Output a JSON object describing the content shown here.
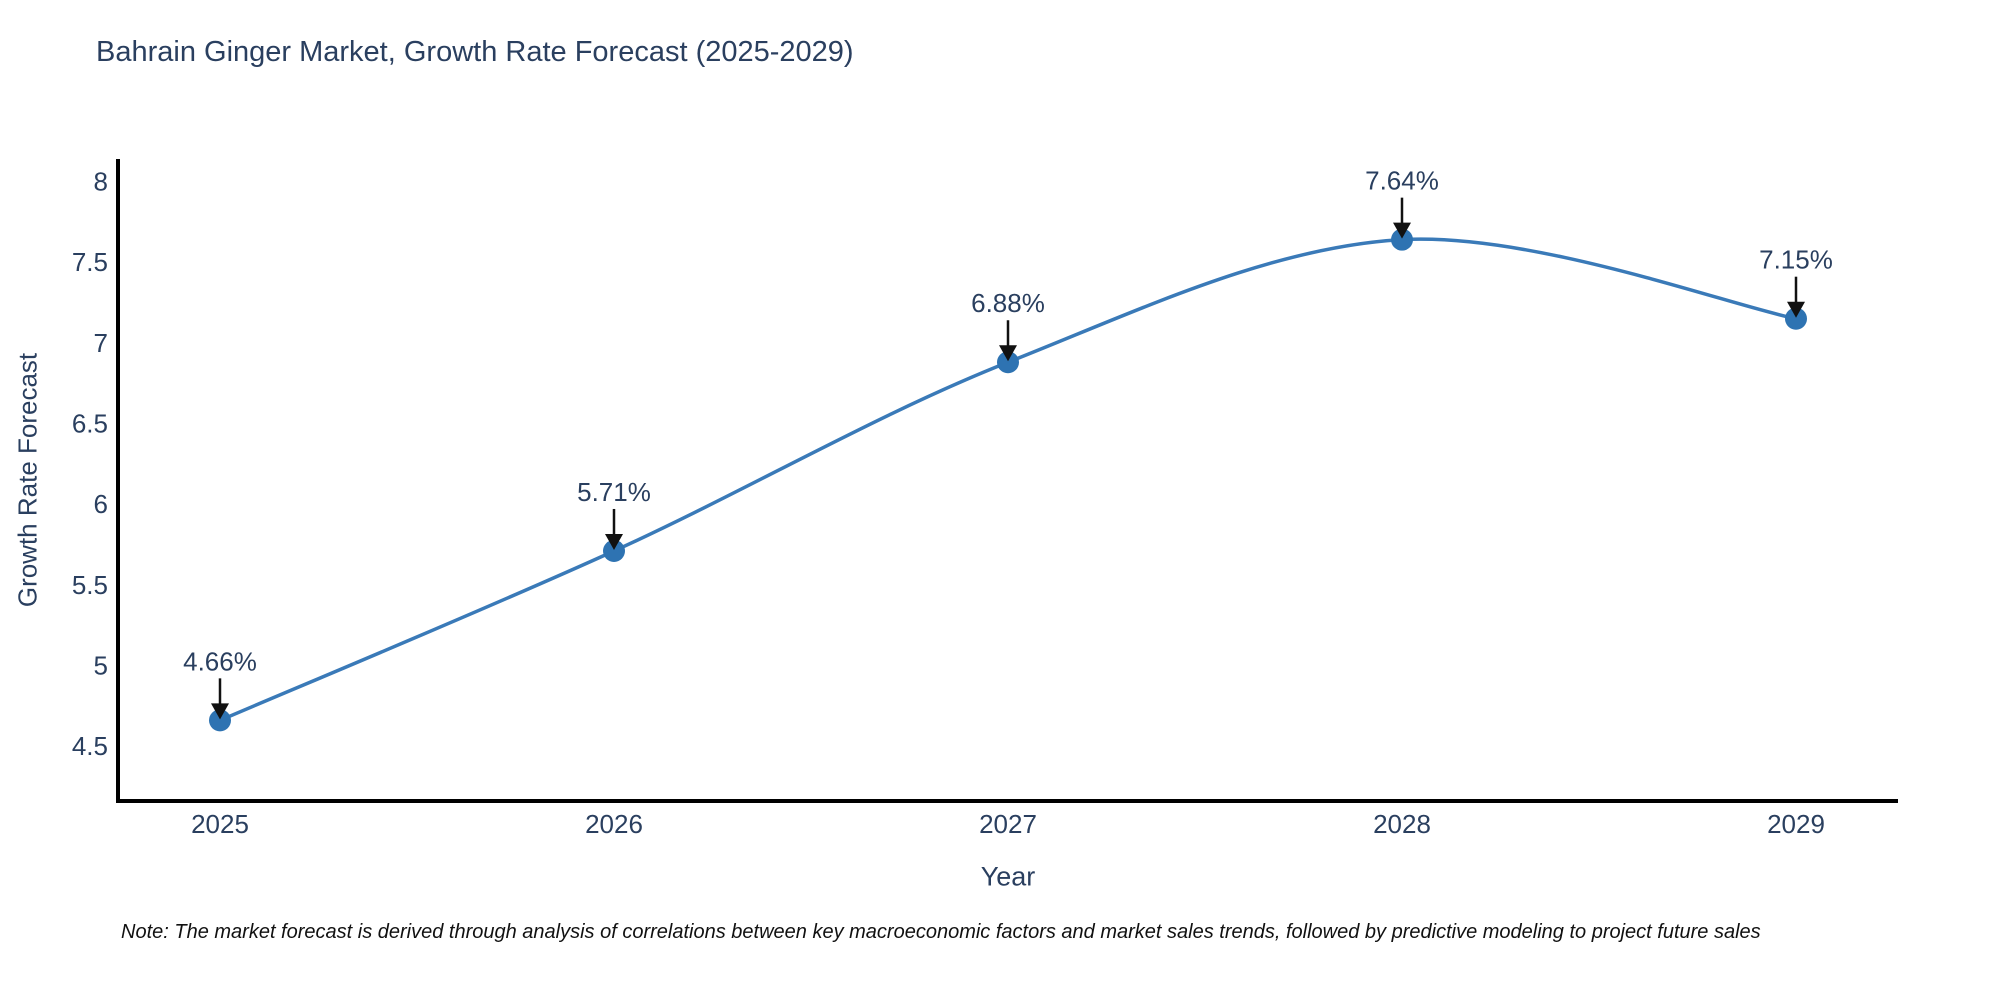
{
  "figure": {
    "title": "Bahrain Ginger Market, Growth Rate Forecast (2025-2029)",
    "note": "Note: The market forecast is derived through analysis of correlations between key macroeconomic factors and market sales trends, followed by predictive modeling to project future sales"
  },
  "chart_data": {
    "type": "line",
    "title": "Bahrain Ginger Market, Growth Rate Forecast (2025-2029)",
    "xlabel": "Year",
    "ylabel": "Growth Rate Forecast",
    "categories": [
      "2025",
      "2026",
      "2027",
      "2028",
      "2029"
    ],
    "series": [
      {
        "name": "Growth Rate Forecast",
        "values": [
          4.66,
          5.71,
          6.88,
          7.64,
          7.15
        ],
        "point_labels": [
          "4.66%",
          "5.71%",
          "6.88%",
          "7.64%",
          "7.15%"
        ]
      }
    ],
    "line_shape": "spline",
    "markers": true,
    "grid": false,
    "legend_position": "none",
    "yticks": [
      4.5,
      5,
      5.5,
      6,
      6.5,
      7,
      7.5,
      8
    ],
    "ylim": [
      4.16,
      8.14
    ],
    "annotation_arrow_direction": "down",
    "colors": {
      "line": "#3a7ab8",
      "marker": "#2e73b2",
      "axis_line": "#000000",
      "text": "#2a3f5f",
      "annotation_text": "#2a3f5f",
      "arrow": "#111111",
      "note_text": "#111111",
      "background": "#ffffff"
    }
  }
}
